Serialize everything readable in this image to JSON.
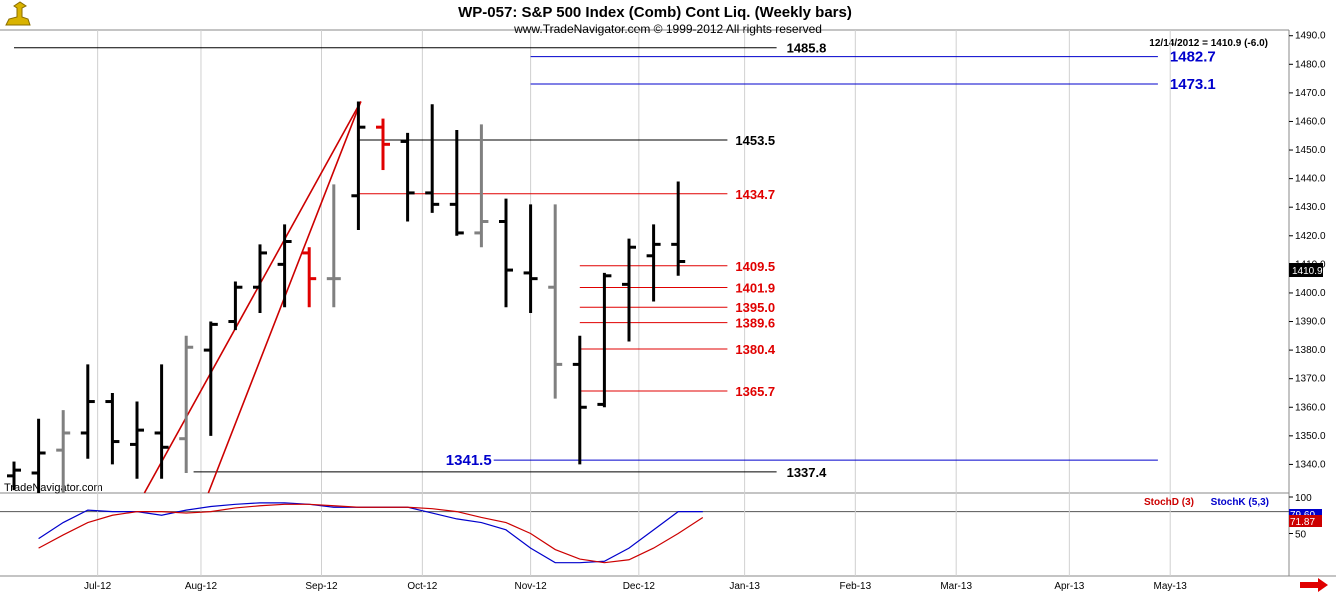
{
  "header": {
    "title": "WP-057:  S&P 500 Index (Comb) Cont Liq.  (Weekly bars)",
    "subtitle": "www.TradeNavigator.com © 1999-2012 All rights reserved",
    "last_readout": "12/14/2012 = 1410.9 (-6.0)",
    "watermark": "TradeNavigator.com"
  },
  "colors": {
    "up_bar": "#000000",
    "gray_bar": "#808080",
    "red_bar": "#e00000",
    "fib_red": "#e00000",
    "target_blue": "#0000cc",
    "stochK": "#0000cc",
    "stochD": "#cc0000",
    "nav_arrow": "#e00000"
  },
  "chart_data": [
    {
      "type": "ohlc",
      "name": "S&P 500 Weekly",
      "ylim": [
        1330,
        1492
      ],
      "y_ticks": [
        1340,
        1350,
        1360,
        1370,
        1380,
        1390,
        1400,
        1410,
        1420,
        1430,
        1440,
        1450,
        1460,
        1470,
        1480,
        1490
      ],
      "y_tick_labels": [
        "1340.0",
        "1350.0",
        "1360.0",
        "1370.0",
        "1380.0",
        "1390.0",
        "1400.0",
        "1410.0",
        "1420.0",
        "1430.0",
        "1440.0",
        "1450.0",
        "1460.0",
        "1470.0",
        "1480.0",
        "1490.0"
      ],
      "x_labels": [
        "Jul-12",
        "Aug-12",
        "Sep-12",
        "Oct-12",
        "Nov-12",
        "Dec-12",
        "Jan-13",
        "Feb-13",
        "Mar-13",
        "Apr-13",
        "May-13"
      ],
      "x_label_week_index": [
        3.4,
        7.6,
        12.5,
        16.6,
        21.0,
        25.4,
        29.7,
        34.2,
        38.3,
        42.9,
        47.0
      ],
      "bars": [
        {
          "w": 0,
          "o": 1336,
          "h": 1341,
          "l": 1331,
          "c": 1338,
          "color": "black"
        },
        {
          "w": 1,
          "o": 1337,
          "h": 1356,
          "l": 1330,
          "c": 1344,
          "color": "black"
        },
        {
          "w": 2,
          "o": 1345,
          "h": 1359,
          "l": 1330,
          "c": 1351,
          "color": "gray"
        },
        {
          "w": 3,
          "o": 1351,
          "h": 1375,
          "l": 1342,
          "c": 1362,
          "color": "black"
        },
        {
          "w": 4,
          "o": 1362,
          "h": 1365,
          "l": 1340,
          "c": 1348,
          "color": "black"
        },
        {
          "w": 5,
          "o": 1347,
          "h": 1362,
          "l": 1335,
          "c": 1352,
          "color": "black"
        },
        {
          "w": 6,
          "o": 1351,
          "h": 1375,
          "l": 1335,
          "c": 1346,
          "color": "black"
        },
        {
          "w": 7,
          "o": 1349,
          "h": 1385,
          "l": 1337,
          "c": 1381,
          "color": "gray"
        },
        {
          "w": 8,
          "o": 1380,
          "h": 1390,
          "l": 1350,
          "c": 1389,
          "color": "black"
        },
        {
          "w": 9,
          "o": 1390,
          "h": 1404,
          "l": 1387,
          "c": 1402,
          "color": "black"
        },
        {
          "w": 10,
          "o": 1402,
          "h": 1417,
          "l": 1393,
          "c": 1414,
          "color": "black"
        },
        {
          "w": 11,
          "o": 1410,
          "h": 1424,
          "l": 1395,
          "c": 1418,
          "color": "black"
        },
        {
          "w": 12,
          "o": 1414,
          "h": 1416,
          "l": 1395,
          "c": 1405,
          "color": "red"
        },
        {
          "w": 13,
          "o": 1405,
          "h": 1438,
          "l": 1395,
          "c": 1405,
          "color": "gray"
        },
        {
          "w": 14,
          "o": 1434,
          "h": 1467,
          "l": 1422,
          "c": 1458,
          "color": "black"
        },
        {
          "w": 15,
          "o": 1458,
          "h": 1461,
          "l": 1443,
          "c": 1452,
          "color": "red"
        },
        {
          "w": 16,
          "o": 1453,
          "h": 1456,
          "l": 1425,
          "c": 1435,
          "color": "black"
        },
        {
          "w": 17,
          "o": 1435,
          "h": 1466,
          "l": 1428,
          "c": 1431,
          "color": "black"
        },
        {
          "w": 18,
          "o": 1431,
          "h": 1457,
          "l": 1420,
          "c": 1421,
          "color": "black"
        },
        {
          "w": 19,
          "o": 1421,
          "h": 1459,
          "l": 1416,
          "c": 1425,
          "color": "gray"
        },
        {
          "w": 20,
          "o": 1425,
          "h": 1433,
          "l": 1395,
          "c": 1408,
          "color": "black"
        },
        {
          "w": 21,
          "o": 1407,
          "h": 1431,
          "l": 1393,
          "c": 1405,
          "color": "black"
        },
        {
          "w": 22,
          "o": 1402,
          "h": 1431,
          "l": 1363,
          "c": 1375,
          "color": "gray"
        },
        {
          "w": 23,
          "o": 1375,
          "h": 1385,
          "l": 1340,
          "c": 1360,
          "color": "black"
        },
        {
          "w": 24,
          "o": 1361,
          "h": 1407,
          "l": 1360,
          "c": 1406,
          "color": "black"
        },
        {
          "w": 25,
          "o": 1403,
          "h": 1419,
          "l": 1383,
          "c": 1416,
          "color": "black"
        },
        {
          "w": 26,
          "o": 1413,
          "h": 1424,
          "l": 1397,
          "c": 1417,
          "color": "black"
        },
        {
          "w": 27,
          "o": 1417,
          "h": 1439,
          "l": 1406,
          "c": 1411,
          "color": "black"
        }
      ],
      "trendlines": [
        {
          "from": [
            5.3,
            1330
          ],
          "to": [
            14.1,
            1467
          ]
        },
        {
          "from": [
            7.9,
            1330
          ],
          "to": [
            14.1,
            1467
          ]
        }
      ],
      "levels": [
        {
          "value": 1485.8,
          "label": "1485.8",
          "color": "black",
          "w0": 0,
          "w1": 31
        },
        {
          "value": 1482.7,
          "label": "1482.7",
          "color": "blue",
          "w0": 21,
          "w1": 46.5
        },
        {
          "value": 1473.1,
          "label": "1473.1",
          "color": "blue",
          "w0": 21,
          "w1": 46.5
        },
        {
          "value": 1453.5,
          "label": "1453.5",
          "color": "black",
          "w0": 14,
          "w1": 29
        },
        {
          "value": 1434.7,
          "label": "1434.7",
          "color": "red",
          "w0": 14,
          "w1": 29
        },
        {
          "value": 1409.5,
          "label": "1409.5",
          "color": "red",
          "w0": 23,
          "w1": 29
        },
        {
          "value": 1401.9,
          "label": "1401.9",
          "color": "red",
          "w0": 23,
          "w1": 29
        },
        {
          "value": 1395.0,
          "label": "1395.0",
          "color": "red",
          "w0": 23,
          "w1": 29
        },
        {
          "value": 1389.6,
          "label": "1389.6",
          "color": "red",
          "w0": 23,
          "w1": 29
        },
        {
          "value": 1380.4,
          "label": "1380.4",
          "color": "red",
          "w0": 23,
          "w1": 29
        },
        {
          "value": 1365.7,
          "label": "1365.7",
          "color": "red",
          "w0": 23,
          "w1": 29
        },
        {
          "value": 1341.5,
          "label": "1341.5",
          "color": "blue",
          "w0": 19.5,
          "w1": 46.5
        },
        {
          "value": 1337.4,
          "label": "1337.4",
          "color": "black",
          "w0": 7.3,
          "w1": 31
        }
      ],
      "last_price_tag": "1410.9"
    },
    {
      "type": "line",
      "name": "Stochastic",
      "ylim": [
        0,
        100
      ],
      "y_ticks": [
        50,
        100
      ],
      "y_tick_labels": [
        "50",
        "100"
      ],
      "reference_line": 80,
      "legend": [
        "StochD (3)",
        "StochK (5,3)"
      ],
      "last_values": {
        "k": "79.60",
        "d": "71.87"
      },
      "series": [
        {
          "name": "StochK (5,3)",
          "color": "blue",
          "values": [
            43,
            65,
            82,
            80,
            80,
            75,
            82,
            87,
            90,
            92,
            92,
            90,
            86,
            86,
            86,
            86,
            78,
            70,
            65,
            55,
            30,
            10,
            10,
            12,
            30,
            55,
            80,
            80
          ]
        },
        {
          "name": "StochD (3)",
          "color": "red",
          "values": [
            30,
            48,
            65,
            75,
            80,
            80,
            78,
            80,
            85,
            88,
            90,
            90,
            88,
            86,
            86,
            86,
            84,
            80,
            72,
            65,
            50,
            28,
            15,
            10,
            14,
            30,
            50,
            72
          ]
        }
      ]
    }
  ]
}
